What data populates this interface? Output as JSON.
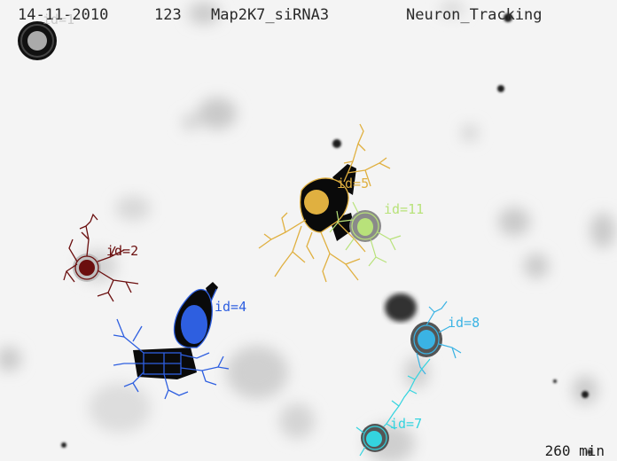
{
  "header": {
    "date": "14-11-2010",
    "frame": "123",
    "condition": "Map2K7_siRNA3",
    "mode": "Neuron_Tracking"
  },
  "time_label": "260 min",
  "cells": [
    {
      "id_label": "id=1",
      "color": "#aaaaaa"
    },
    {
      "id_label": "id=2",
      "color": "#6b0f0f"
    },
    {
      "id_label": "id=4",
      "color": "#2e5fe0"
    },
    {
      "id_label": "id=5",
      "color": "#e0b040"
    },
    {
      "id_label": "id=11",
      "color": "#b8e27a"
    },
    {
      "id_label": "id=8",
      "color": "#3ab3e4"
    },
    {
      "id_label": "id=7",
      "color": "#34d4df"
    }
  ]
}
